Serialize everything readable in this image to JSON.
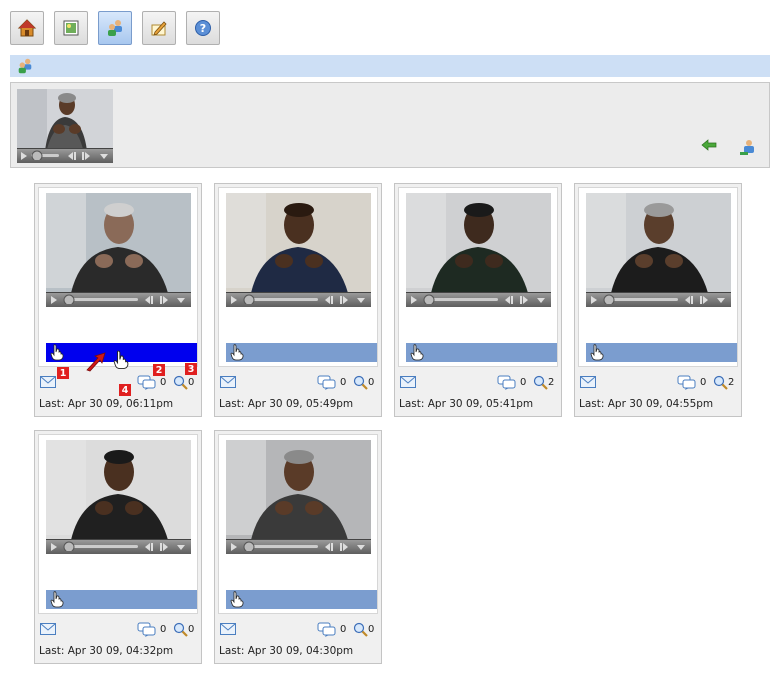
{
  "toolbar": {
    "buttons": [
      {
        "icon": "home-icon"
      },
      {
        "icon": "picture-icon"
      },
      {
        "icon": "users-icon",
        "active": true
      },
      {
        "icon": "edit-icon"
      },
      {
        "icon": "help-icon"
      }
    ]
  },
  "header": {
    "icon": "users-icon"
  },
  "preview": {
    "back_icon": "back-arrow-icon",
    "swap_icon": "user-swap-icon"
  },
  "cards": [
    {
      "comments": "0",
      "views": "0",
      "last": "Last: Apr 30 09, 06:11pm",
      "highlight": true
    },
    {
      "comments": "0",
      "views": "0",
      "last": "Last: Apr 30 09, 05:49pm"
    },
    {
      "comments": "0",
      "views": "2",
      "last": "Last: Apr 30 09, 05:41pm"
    },
    {
      "comments": "0",
      "views": "2",
      "last": "Last: Apr 30 09, 04:55pm"
    },
    {
      "comments": "0",
      "views": "0",
      "last": "Last: Apr 30 09, 04:32pm"
    },
    {
      "comments": "0",
      "views": "0",
      "last": "Last: Apr 30 09, 04:30pm"
    }
  ],
  "annotations": {
    "badge1": "1",
    "badge2": "2",
    "badge3": "3",
    "badge4": "4"
  },
  "colors": {
    "header_bar": "#cddff5",
    "sign_bar": "#7b9dcf",
    "sign_bar_active": "#0000ee",
    "badge": "#e02020"
  }
}
